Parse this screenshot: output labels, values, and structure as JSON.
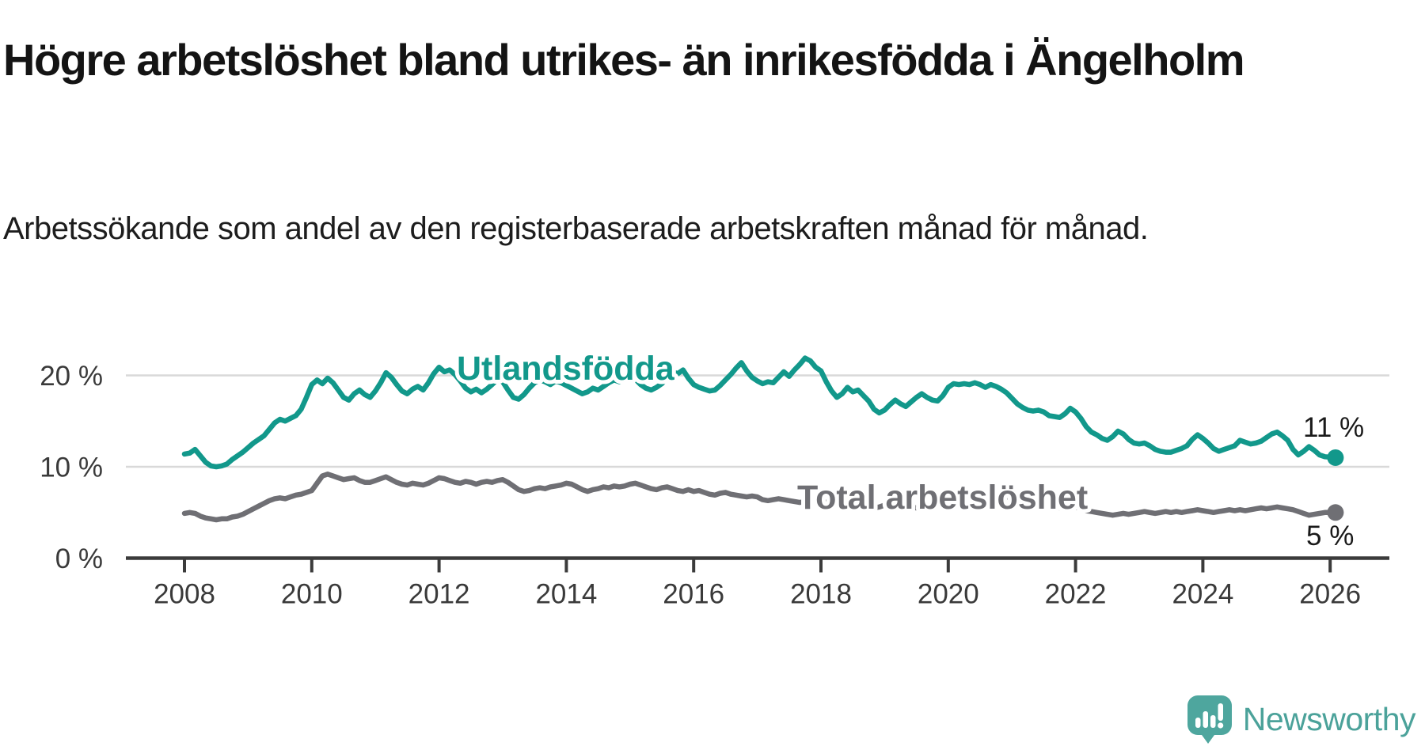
{
  "header": {
    "title": "Högre arbetslöshet bland utrikes- än inrikesfödda i Ängelholm",
    "subtitle": "Arbetssökande som andel av den registerbaserade arbetskraften månad för månad."
  },
  "chart_data": {
    "type": "line",
    "title": "Högre arbetslöshet bland utrikes- än inrikesfödda i Ängelholm",
    "subtitle": "Arbetssökande som andel av den registerbaserade arbetskraften månad för månad.",
    "x_start_year": 2008,
    "x_step_months": 1,
    "x_end": "2026-02",
    "xlim": [
      2007.1,
      2026.9
    ],
    "ylim": [
      0,
      24
    ],
    "grid": "horizontal-light",
    "legend_position": "inline-labels",
    "yticks": [
      {
        "value": 0,
        "label": "0 %"
      },
      {
        "value": 10,
        "label": "10 %"
      },
      {
        "value": 20,
        "label": "20 %"
      }
    ],
    "xticks": [
      {
        "value": 2008,
        "label": "2008"
      },
      {
        "value": 2010,
        "label": "2010"
      },
      {
        "value": 2012,
        "label": "2012"
      },
      {
        "value": 2014,
        "label": "2014"
      },
      {
        "value": 2016,
        "label": "2016"
      },
      {
        "value": 2018,
        "label": "2018"
      },
      {
        "value": 2020,
        "label": "2020"
      },
      {
        "value": 2022,
        "label": "2022"
      },
      {
        "value": 2024,
        "label": "2024"
      },
      {
        "value": 2026,
        "label": "2026"
      }
    ],
    "series": [
      {
        "name": "Utlandsfödda",
        "label": "Utlandsfödda",
        "end_label": "11 %",
        "end_value_pct": 11,
        "color": "#12988b",
        "values": [
          11.4,
          11.5,
          11.9,
          11.2,
          10.5,
          10.1,
          10.0,
          10.1,
          10.3,
          10.8,
          11.2,
          11.6,
          12.1,
          12.6,
          13.0,
          13.4,
          14.1,
          14.8,
          15.2,
          15.0,
          15.3,
          15.6,
          16.3,
          17.6,
          19.0,
          19.5,
          19.1,
          19.7,
          19.2,
          18.4,
          17.6,
          17.3,
          18.0,
          18.4,
          17.9,
          17.6,
          18.3,
          19.2,
          20.3,
          19.8,
          19.0,
          18.3,
          18.0,
          18.5,
          18.8,
          18.4,
          19.2,
          20.2,
          20.9,
          20.4,
          20.6,
          20.1,
          19.4,
          18.6,
          18.2,
          18.5,
          18.1,
          18.5,
          19.0,
          19.6,
          19.3,
          18.4,
          17.6,
          17.4,
          17.9,
          18.6,
          19.2,
          19.5,
          19.3,
          19.0,
          19.4,
          19.2,
          18.9,
          18.6,
          18.3,
          18.0,
          18.2,
          18.6,
          18.4,
          18.8,
          19.2,
          19.5,
          19.3,
          19.6,
          19.9,
          19.6,
          19.0,
          18.6,
          18.4,
          18.7,
          19.1,
          19.8,
          20.4,
          20.2,
          20.6,
          19.7,
          19.0,
          18.7,
          18.5,
          18.3,
          18.4,
          18.9,
          19.5,
          20.1,
          20.8,
          21.4,
          20.5,
          19.8,
          19.4,
          19.1,
          19.3,
          19.2,
          19.8,
          20.4,
          19.9,
          20.6,
          21.2,
          21.9,
          21.6,
          20.9,
          20.5,
          19.3,
          18.3,
          17.6,
          18.0,
          18.7,
          18.2,
          18.4,
          17.8,
          17.2,
          16.3,
          15.9,
          16.2,
          16.8,
          17.3,
          16.9,
          16.6,
          17.1,
          17.6,
          18.0,
          17.6,
          17.3,
          17.2,
          17.8,
          18.7,
          19.1,
          19.0,
          19.1,
          19.0,
          19.2,
          19.0,
          18.7,
          19.0,
          18.8,
          18.5,
          18.1,
          17.5,
          16.9,
          16.5,
          16.2,
          16.1,
          16.2,
          16.0,
          15.6,
          15.5,
          15.4,
          15.8,
          16.4,
          16.0,
          15.3,
          14.4,
          13.8,
          13.5,
          13.1,
          12.9,
          13.3,
          13.9,
          13.6,
          13.0,
          12.6,
          12.5,
          12.6,
          12.3,
          11.9,
          11.7,
          11.6,
          11.6,
          11.8,
          12.0,
          12.3,
          13.0,
          13.5,
          13.1,
          12.6,
          12.0,
          11.7,
          11.9,
          12.1,
          12.3,
          12.9,
          12.7,
          12.5,
          12.6,
          12.8,
          13.2,
          13.6,
          13.8,
          13.4,
          12.9,
          11.9,
          11.3,
          11.7,
          12.2,
          11.8,
          11.3,
          11.1,
          11.05,
          11.0
        ]
      },
      {
        "name": "Total arbetslöshet",
        "label": "Total arbetslöshet",
        "end_label": "5 %",
        "end_value_pct": 5,
        "color": "#6f6f74",
        "values": [
          4.9,
          5.0,
          4.9,
          4.6,
          4.4,
          4.3,
          4.2,
          4.3,
          4.3,
          4.5,
          4.6,
          4.8,
          5.1,
          5.4,
          5.7,
          6.0,
          6.3,
          6.5,
          6.6,
          6.5,
          6.7,
          6.9,
          7.0,
          7.2,
          7.4,
          8.2,
          9.0,
          9.2,
          9.0,
          8.8,
          8.6,
          8.7,
          8.8,
          8.5,
          8.3,
          8.3,
          8.5,
          8.7,
          8.9,
          8.6,
          8.3,
          8.1,
          8.0,
          8.2,
          8.1,
          8.0,
          8.2,
          8.5,
          8.8,
          8.7,
          8.5,
          8.3,
          8.2,
          8.4,
          8.3,
          8.1,
          8.3,
          8.4,
          8.3,
          8.5,
          8.6,
          8.3,
          7.9,
          7.5,
          7.3,
          7.4,
          7.6,
          7.7,
          7.6,
          7.8,
          7.9,
          8.0,
          8.2,
          8.1,
          7.8,
          7.5,
          7.3,
          7.5,
          7.6,
          7.8,
          7.7,
          7.9,
          7.8,
          7.9,
          8.1,
          8.2,
          8.0,
          7.8,
          7.6,
          7.5,
          7.7,
          7.8,
          7.6,
          7.4,
          7.3,
          7.5,
          7.3,
          7.4,
          7.2,
          7.0,
          6.9,
          7.1,
          7.2,
          7.0,
          6.9,
          6.8,
          6.7,
          6.8,
          6.7,
          6.4,
          6.3,
          6.4,
          6.5,
          6.4,
          6.3,
          6.2,
          6.1,
          6.2,
          6.1,
          6.2,
          6.3,
          6.1,
          6.0,
          5.9,
          6.0,
          6.1,
          5.9,
          5.8,
          5.7,
          5.6,
          5.5,
          5.6,
          5.8,
          5.6,
          5.5,
          5.4,
          5.5,
          5.6,
          5.5,
          5.4,
          5.5,
          5.6,
          5.7,
          5.9,
          6.1,
          6.4,
          6.7,
          6.9,
          7.0,
          7.1,
          7.0,
          6.9,
          7.0,
          6.9,
          6.8,
          6.7,
          6.6,
          6.4,
          6.3,
          6.1,
          6.0,
          5.9,
          5.8,
          5.7,
          5.6,
          5.5,
          5.6,
          5.7,
          5.6,
          5.4,
          5.2,
          5.1,
          5.0,
          4.9,
          4.8,
          4.7,
          4.8,
          4.9,
          4.8,
          4.9,
          5.0,
          5.1,
          5.0,
          4.9,
          5.0,
          5.1,
          5.0,
          5.1,
          5.0,
          5.1,
          5.2,
          5.3,
          5.2,
          5.1,
          5.0,
          5.1,
          5.2,
          5.3,
          5.2,
          5.3,
          5.2,
          5.3,
          5.4,
          5.5,
          5.4,
          5.5,
          5.6,
          5.5,
          5.4,
          5.3,
          5.1,
          4.9,
          4.7,
          4.8,
          4.9,
          5.0,
          5.0,
          5.0
        ]
      }
    ],
    "colors": {
      "grid": "#d9d9d9",
      "axis": "#3b3b3b",
      "tick_text": "#3a3a3a",
      "annotation_text": "#1a1a1a"
    }
  },
  "footer": {
    "brand": "Newsworthy",
    "brand_color": "#4ba29a",
    "logo_icon": "speech-bubble-bar-chart-exclamation"
  }
}
